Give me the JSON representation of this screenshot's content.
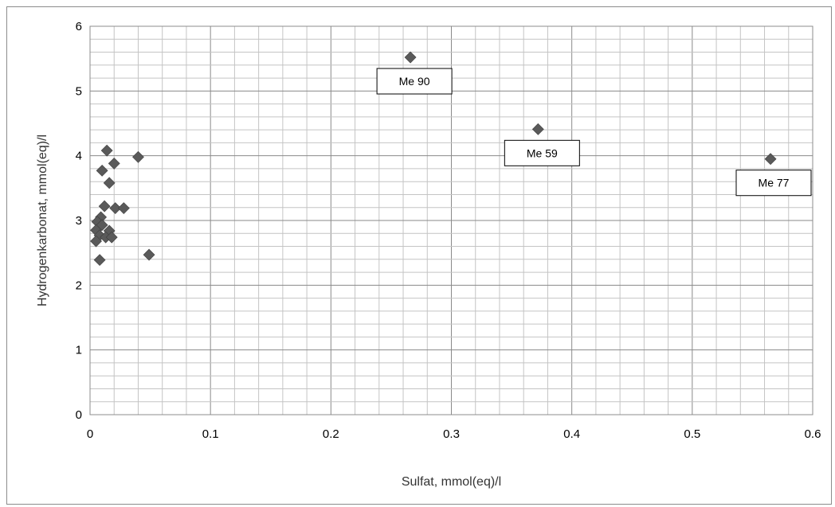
{
  "chart_data": {
    "type": "scatter",
    "xlabel": "Sulfat, mmol(eq)/l",
    "ylabel": "Hydrogenkarbonat, mmol(eq)/l",
    "xlim": [
      0,
      0.6
    ],
    "ylim": [
      0,
      6
    ],
    "x_ticks": [
      "0",
      "0.1",
      "0.2",
      "0.3",
      "0.4",
      "0.5",
      "0.6"
    ],
    "y_ticks": [
      "0",
      "1",
      "2",
      "3",
      "4",
      "5",
      "6"
    ],
    "grid": true,
    "marker": "diamond",
    "marker_color": "#5a5a5a",
    "series": [
      {
        "points": [
          {
            "x": 0.014,
            "y": 4.08
          },
          {
            "x": 0.04,
            "y": 3.98
          },
          {
            "x": 0.02,
            "y": 3.88
          },
          {
            "x": 0.01,
            "y": 3.77
          },
          {
            "x": 0.016,
            "y": 3.58
          },
          {
            "x": 0.012,
            "y": 3.22
          },
          {
            "x": 0.021,
            "y": 3.19
          },
          {
            "x": 0.028,
            "y": 3.19
          },
          {
            "x": 0.009,
            "y": 3.05
          },
          {
            "x": 0.006,
            "y": 2.98
          },
          {
            "x": 0.01,
            "y": 2.93
          },
          {
            "x": 0.005,
            "y": 2.85
          },
          {
            "x": 0.016,
            "y": 2.84
          },
          {
            "x": 0.008,
            "y": 2.77
          },
          {
            "x": 0.013,
            "y": 2.74
          },
          {
            "x": 0.018,
            "y": 2.74
          },
          {
            "x": 0.005,
            "y": 2.68
          },
          {
            "x": 0.049,
            "y": 2.47
          },
          {
            "x": 0.008,
            "y": 2.39
          },
          {
            "x": 0.266,
            "y": 5.52
          },
          {
            "x": 0.372,
            "y": 4.41
          },
          {
            "x": 0.565,
            "y": 3.95
          }
        ]
      }
    ],
    "annotations": [
      {
        "text": "Me 90",
        "x": 0.266,
        "y": 5.52
      },
      {
        "text": "Me 59",
        "x": 0.372,
        "y": 4.41
      },
      {
        "text": "Me 77",
        "x": 0.565,
        "y": 3.95
      }
    ]
  }
}
